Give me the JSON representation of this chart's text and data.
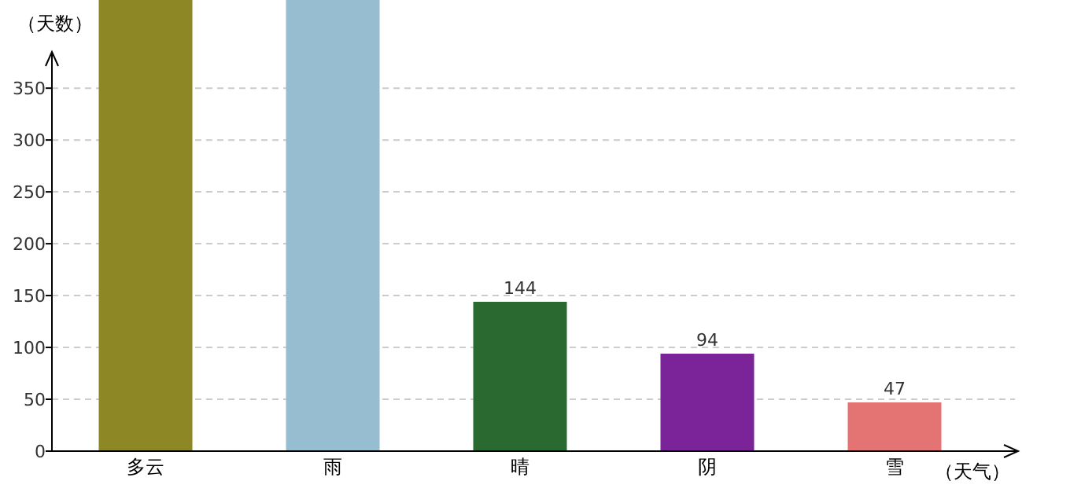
{
  "chart_data": {
    "type": "bar",
    "xlabel": "（天气）",
    "ylabel": "（天数）",
    "categories": [
      "多云",
      "雨",
      "晴",
      "阴",
      "雪"
    ],
    "values": [
      435,
      435,
      144,
      94,
      47
    ],
    "colors": [
      "#8e8726",
      "#97bdd1",
      "#2a6930",
      "#7b2399",
      "#e47474"
    ],
    "value_labels": [
      null,
      null,
      "144",
      "94",
      "47"
    ],
    "ylim": [
      0,
      435
    ],
    "yticks": [
      0,
      50,
      100,
      150,
      200,
      250,
      300,
      350
    ],
    "grid": "y"
  }
}
